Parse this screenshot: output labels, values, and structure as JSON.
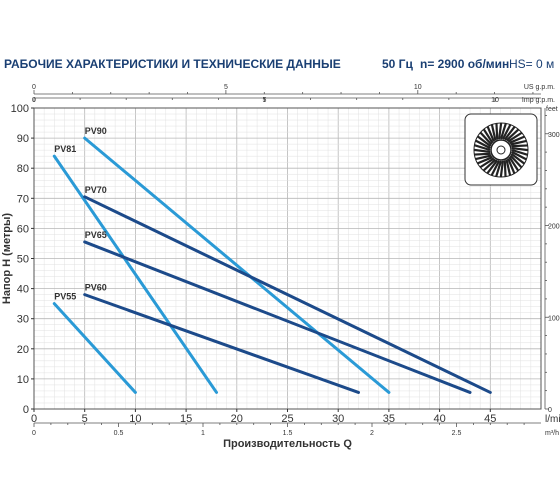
{
  "header": {
    "title": "РАБОЧИЕ ХАРАКТЕРИСТИКИ И ТЕХНИЧЕСКИЕ ДАННЫЕ",
    "frequency": "50 Гц",
    "speed": "n= 2900 об/мин",
    "hs": "HS= 0 м"
  },
  "chart_data": {
    "type": "line",
    "title": "",
    "xlabel": "Производительность Q",
    "x_unit": "l/min",
    "ylabel": "Напор H (метры)",
    "xlim": [
      0,
      50
    ],
    "ylim": [
      0,
      100
    ],
    "x_ticks": [
      0,
      5,
      10,
      15,
      20,
      25,
      30,
      35,
      40,
      45
    ],
    "y_ticks": [
      0,
      10,
      20,
      30,
      40,
      50,
      60,
      70,
      80,
      90,
      100
    ],
    "grid": true,
    "secondary_axes": {
      "us_gpm": {
        "label": "US g.p.m.",
        "ticks": [
          0,
          5,
          10
        ]
      },
      "imp_gpm": {
        "label": "Imp g.p.m.",
        "ticks": [
          0,
          5,
          10
        ]
      },
      "m3h": {
        "label": "m³/h",
        "ticks": [
          0,
          0.5,
          1,
          1.5,
          2,
          2.5
        ]
      },
      "feet": {
        "label": "feet",
        "ticks": [
          0,
          100,
          200,
          300
        ]
      }
    },
    "series": [
      {
        "name": "PV90",
        "color": "#2a9ad6",
        "points": [
          [
            5,
            90
          ],
          [
            35,
            5.5
          ]
        ]
      },
      {
        "name": "PV81",
        "color": "#2a9ad6",
        "points": [
          [
            2,
            84
          ],
          [
            18,
            5.5
          ]
        ]
      },
      {
        "name": "PV70",
        "color": "#1c4a8a",
        "points": [
          [
            5,
            70.5
          ],
          [
            45,
            5.5
          ]
        ]
      },
      {
        "name": "PV65",
        "color": "#1c4a8a",
        "points": [
          [
            5,
            55.5
          ],
          [
            43,
            5.5
          ]
        ]
      },
      {
        "name": "PV60",
        "color": "#1c4a8a",
        "points": [
          [
            5,
            38
          ],
          [
            32,
            5.5
          ]
        ]
      },
      {
        "name": "PV55",
        "color": "#2a9ad6",
        "points": [
          [
            2,
            35
          ],
          [
            10,
            5.5
          ]
        ]
      }
    ]
  }
}
